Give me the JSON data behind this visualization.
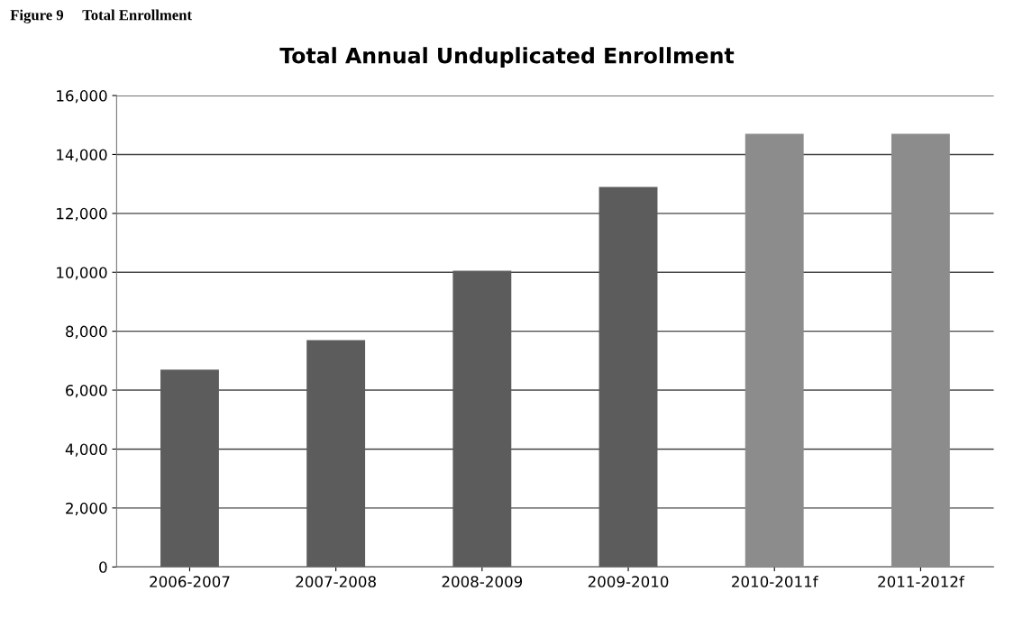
{
  "chart_data": {
    "type": "bar",
    "title": "Total Annual Unduplicated Enrollment",
    "annotations": [
      "Figure 9     Total Enrollment"
    ],
    "categories": [
      "2006-2007",
      "2007-2008",
      "2008-2009",
      "2009-2010",
      "2010-2011f",
      "2011-2012f"
    ],
    "values": [
      6700,
      7700,
      10050,
      12900,
      14700,
      14700
    ],
    "colors": [
      "#5c5c5c",
      "#5c5c5c",
      "#5c5c5c",
      "#5c5c5c",
      "#8c8c8c",
      "#8c8c8c"
    ],
    "ylim": [
      0,
      16000
    ],
    "yticks": [
      {
        "value": 0,
        "label": "0"
      },
      {
        "value": 2000,
        "label": "2,000"
      },
      {
        "value": 4000,
        "label": "4,000"
      },
      {
        "value": 6000,
        "label": "6,000"
      },
      {
        "value": 8000,
        "label": "8,000"
      },
      {
        "value": 10000,
        "label": "10,000"
      },
      {
        "value": 12000,
        "label": "12,000"
      },
      {
        "value": 14000,
        "label": "14,000"
      },
      {
        "value": 16000,
        "label": "16,000"
      }
    ],
    "grid": "y"
  }
}
